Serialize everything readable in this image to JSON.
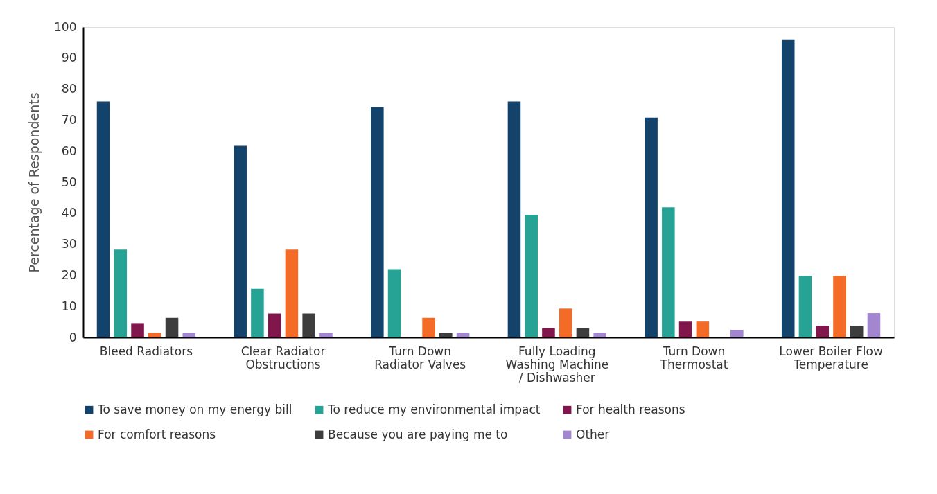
{
  "chart_data": {
    "type": "bar",
    "ylabel": "Percentage of Respondents",
    "categories": [
      "Bleed Radiators",
      "Clear Radiator Obstructions",
      "Turn Down Radiator Valves",
      "Fully Loading Washing Machine / Dishwasher",
      "Turn Down Thermostat",
      "Lower Boiler Flow Temperature"
    ],
    "series": [
      {
        "name": "To save money on my energy bill",
        "color": "#13426b",
        "values": [
          76.0,
          61.7,
          74.2,
          76.0,
          70.8,
          95.8
        ]
      },
      {
        "name": "To reduce my environmental impact",
        "color": "#27a396",
        "values": [
          28.3,
          15.7,
          22.0,
          39.5,
          41.9,
          19.8
        ]
      },
      {
        "name": "For health reasons",
        "color": "#80164c",
        "values": [
          4.6,
          7.7,
          null,
          3.0,
          5.1,
          3.8
        ]
      },
      {
        "name": "For comfort reasons",
        "color": "#f46b27",
        "values": [
          1.5,
          28.3,
          6.3,
          9.3,
          5.1,
          19.8
        ]
      },
      {
        "name": "Because you are paying me to",
        "color": "#3d3d3d",
        "values": [
          6.3,
          7.7,
          1.5,
          3.0,
          null,
          3.8
        ]
      },
      {
        "name": "Other",
        "color": "#a286d0",
        "values": [
          1.5,
          1.5,
          1.5,
          1.5,
          2.4,
          7.8
        ]
      }
    ],
    "ylim": [
      0,
      100
    ],
    "yticks": [
      0,
      10,
      20,
      30,
      40,
      50,
      60,
      70,
      80,
      90,
      100
    ],
    "grid": false,
    "legend": "bottom"
  }
}
